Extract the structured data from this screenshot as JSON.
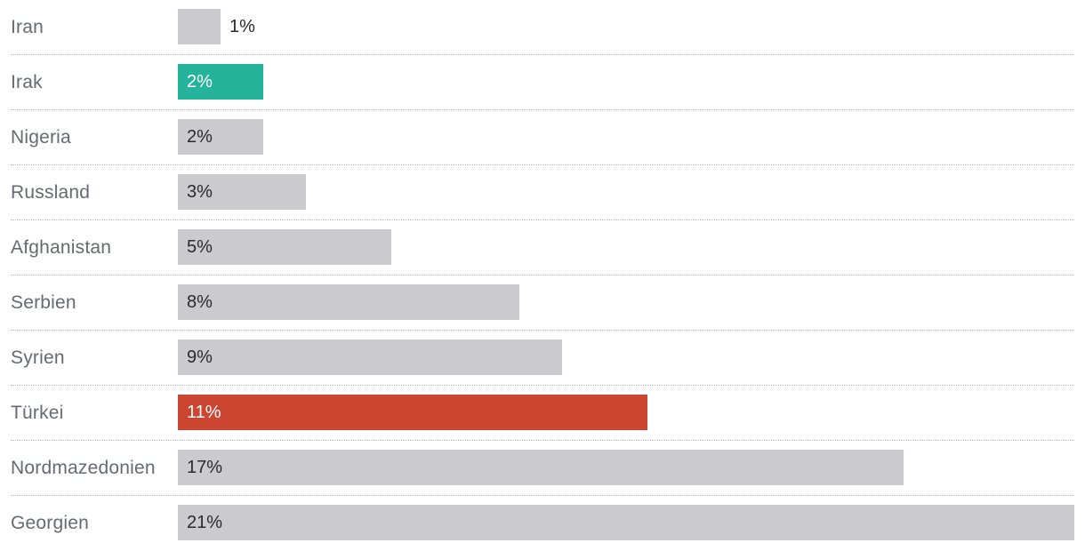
{
  "chart_data": {
    "type": "bar",
    "orientation": "horizontal",
    "categories": [
      "Iran",
      "Irak",
      "Nigeria",
      "Russland",
      "Afghanistan",
      "Serbien",
      "Syrien",
      "Türkei",
      "Nordmazedonien",
      "Georgien"
    ],
    "values": [
      1,
      2,
      2,
      3,
      5,
      8,
      9,
      11,
      17,
      21
    ],
    "value_labels": [
      "1%",
      "2%",
      "2%",
      "3%",
      "5%",
      "8%",
      "9%",
      "11%",
      "17%",
      "21%"
    ],
    "xlim": [
      0,
      21
    ],
    "grid": false,
    "colors": {
      "default": "#cacacf",
      "highlights": {
        "Irak": "#25b39c",
        "Türkei": "#cc4531"
      }
    }
  }
}
